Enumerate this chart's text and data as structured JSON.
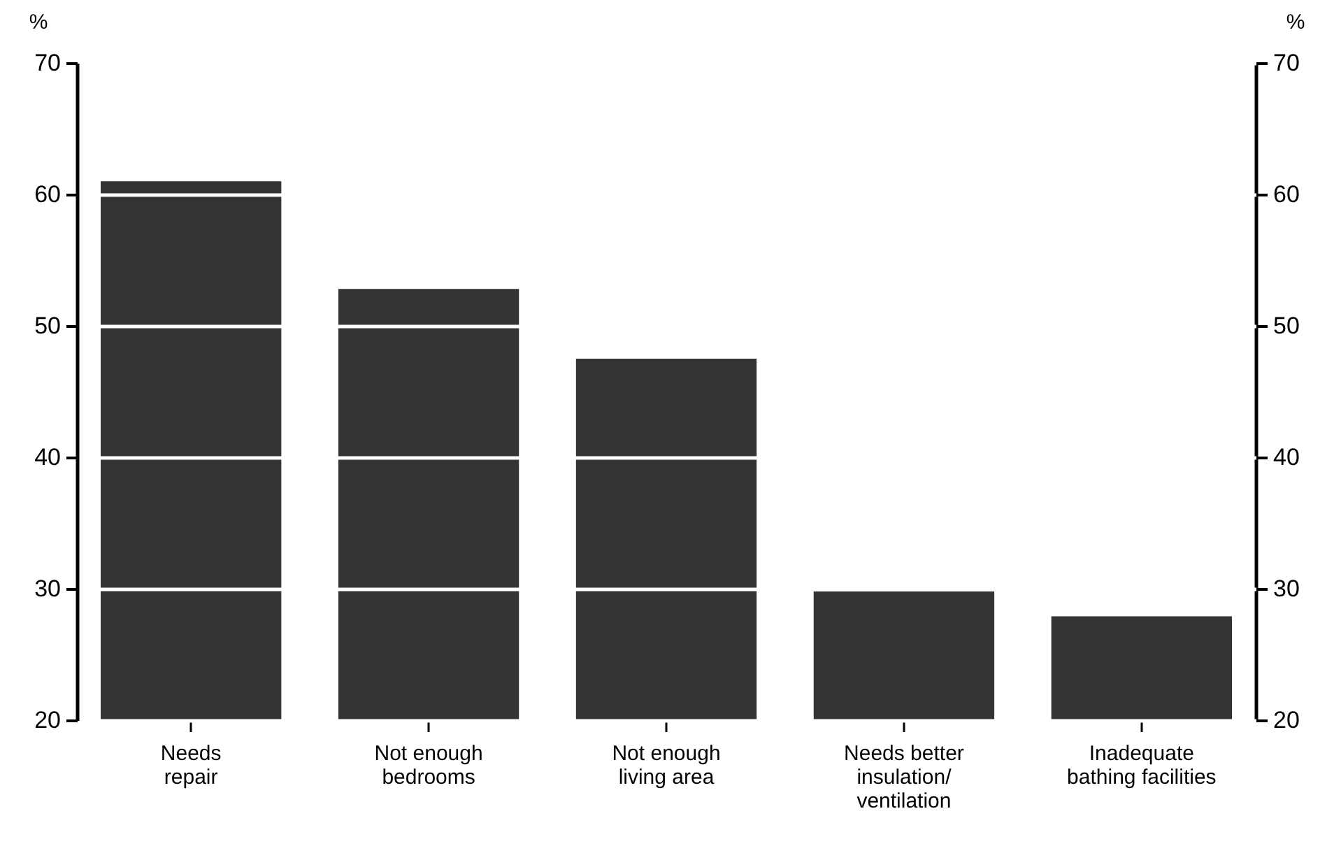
{
  "chart_data": {
    "type": "bar",
    "categories": [
      "Needs repair",
      "Not enough bedrooms",
      "Not enough living area",
      "Needs better insulation/ ventilation",
      "Inadequate bathing facilities"
    ],
    "values": [
      61,
      52.8,
      47.5,
      29.8,
      27.9
    ],
    "color": "#333333",
    "ylabel": "%",
    "y2label": "%",
    "ylim": [
      20,
      70
    ],
    "yticks": [
      20,
      30,
      40,
      50,
      60,
      70
    ],
    "y2lim": [
      20,
      70
    ],
    "y2ticks": [
      20,
      30,
      40,
      50,
      60,
      70
    ],
    "grid": "y"
  }
}
